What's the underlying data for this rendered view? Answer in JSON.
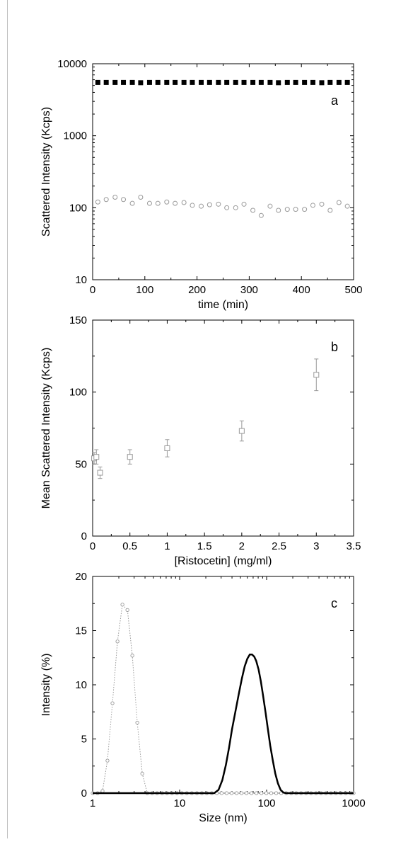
{
  "chart_data": [
    {
      "id": "a",
      "type": "scatter",
      "panel_label": "a",
      "xlabel": "time (min)",
      "ylabel": "Scattered Intensity (Kcps)",
      "xlim": [
        0,
        500
      ],
      "ylim": [
        10,
        10000
      ],
      "y_scale": "log",
      "x_ticks": [
        "0",
        "100",
        "200",
        "300",
        "400",
        "500"
      ],
      "y_ticks": [
        "10",
        "100",
        "1000",
        "10000"
      ],
      "series": [
        {
          "marker": "filled-square",
          "color": "#000000",
          "x": [
            10,
            26,
            43,
            59,
            76,
            92,
            109,
            125,
            142,
            158,
            175,
            191,
            208,
            224,
            241,
            257,
            274,
            290,
            307,
            323,
            340,
            356,
            373,
            389,
            406,
            422,
            439,
            455,
            472,
            488
          ],
          "y": [
            5500,
            5500,
            5500,
            5500,
            5500,
            5450,
            5500,
            5500,
            5500,
            5500,
            5500,
            5500,
            5500,
            5500,
            5500,
            5500,
            5500,
            5500,
            5500,
            5500,
            5500,
            5450,
            5500,
            5500,
            5500,
            5500,
            5450,
            5500,
            5500,
            5500
          ]
        },
        {
          "marker": "open-circle",
          "color": "#999999",
          "x": [
            10,
            26,
            43,
            59,
            76,
            92,
            109,
            125,
            142,
            158,
            175,
            191,
            208,
            224,
            241,
            257,
            274,
            290,
            307,
            323,
            340,
            356,
            373,
            389,
            406,
            422,
            439,
            455,
            472,
            488
          ],
          "y": [
            120,
            130,
            140,
            130,
            115,
            140,
            115,
            115,
            120,
            115,
            118,
            108,
            105,
            110,
            112,
            100,
            100,
            112,
            92,
            78,
            105,
            92,
            95,
            95,
            95,
            108,
            112,
            92,
            118,
            105
          ]
        }
      ]
    },
    {
      "id": "b",
      "type": "scatter",
      "panel_label": "b",
      "xlabel": "[Ristocetin] (mg/ml)",
      "ylabel": "Mean Scattered Intensity (Kcps)",
      "xlim": [
        0,
        3.5
      ],
      "ylim": [
        0,
        150
      ],
      "x_ticks": [
        "0",
        "0.5",
        "1",
        "1.5",
        "2",
        "2.5",
        "3",
        "3.5"
      ],
      "y_ticks": [
        "0",
        "50",
        "100",
        "150"
      ],
      "series": [
        {
          "marker": "open-square",
          "color": "#999999",
          "x": [
            0.02,
            0.05,
            0.1,
            0.5,
            1.0,
            2.0,
            3.0
          ],
          "y": [
            54,
            55,
            44,
            55,
            61,
            73,
            112
          ],
          "err": [
            4,
            5,
            4,
            5,
            6,
            7,
            11
          ]
        }
      ]
    },
    {
      "id": "c",
      "type": "line",
      "panel_label": "c",
      "xlabel": "Size (nm)",
      "ylabel": "Intensity (%)",
      "xlim": [
        1,
        1000
      ],
      "x_scale": "log",
      "ylim": [
        0,
        20
      ],
      "x_ticks": [
        "1",
        "10",
        "100",
        "1000"
      ],
      "y_ticks": [
        "0",
        "5",
        "10",
        "15",
        "20"
      ],
      "series": [
        {
          "style": "dotted-with-open-circles",
          "color": "#999999",
          "x": [
            1.0,
            1.14,
            1.3,
            1.48,
            1.69,
            1.93,
            2.2,
            2.51,
            2.86,
            3.26,
            3.72,
            4.24,
            4.83,
            5.51,
            6.29,
            7.17,
            8.18,
            9.33,
            10.6,
            12.1,
            13.8,
            15.8,
            18.0,
            20.5,
            23.4,
            26.7,
            30.4,
            34.7,
            39.6,
            45.2,
            51.5,
            58.7,
            67.0,
            76.4,
            87.1,
            99.4,
            113,
            129,
            147,
            168,
            192,
            219,
            249,
            284,
            324,
            370,
            422,
            481,
            549,
            626,
            714,
            814,
            929,
            1000
          ],
          "y": [
            0,
            0,
            0.2,
            3.0,
            8.3,
            14.0,
            17.4,
            16.9,
            12.7,
            6.5,
            1.8,
            0,
            0,
            0,
            0,
            0,
            0,
            0,
            0,
            0,
            0,
            0,
            0,
            0,
            0,
            0,
            0,
            0,
            0,
            0,
            0,
            0,
            0,
            0,
            0,
            0,
            0,
            0,
            0,
            0,
            0,
            0,
            0,
            0,
            0,
            0,
            0,
            0,
            0,
            0,
            0,
            0,
            0,
            0
          ]
        },
        {
          "style": "solid-thick",
          "color": "#000000",
          "x": [
            1,
            20,
            25,
            28,
            31,
            34,
            37,
            40,
            44,
            48,
            52,
            56,
            60,
            64,
            68,
            72,
            76,
            81,
            86,
            91,
            97,
            103,
            110,
            118,
            126,
            135,
            145,
            156,
            168,
            181,
            195,
            210,
            230,
            300,
            1000
          ],
          "y": [
            0,
            0,
            0,
            0.3,
            1.2,
            2.6,
            4.2,
            5.9,
            7.6,
            9.2,
            10.6,
            11.7,
            12.4,
            12.8,
            12.8,
            12.6,
            12.2,
            11.4,
            10.3,
            9.0,
            7.5,
            6.0,
            4.4,
            3.0,
            1.8,
            0.9,
            0.3,
            0.05,
            0,
            0,
            0,
            0,
            0,
            0,
            0
          ]
        }
      ]
    }
  ]
}
